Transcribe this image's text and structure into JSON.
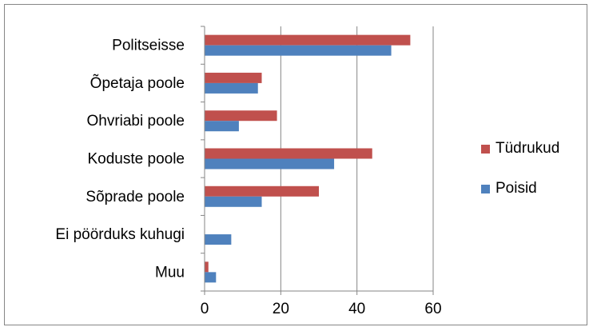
{
  "chart_data": {
    "type": "bar",
    "orientation": "horizontal",
    "categories": [
      "Politseisse",
      "Õpetaja poole",
      "Ohvriabi poole",
      "Koduste poole",
      "Sõprade poole",
      "Ei pöörduks kuhugi",
      "Muu"
    ],
    "series": [
      {
        "name": "Tüdrukud",
        "color": "#c0504d",
        "values": [
          54,
          15,
          19,
          44,
          30,
          0,
          1
        ]
      },
      {
        "name": "Poisid",
        "color": "#4f81bd",
        "values": [
          49,
          14,
          9,
          34,
          15,
          7,
          3
        ]
      }
    ],
    "xlim": [
      0,
      60
    ],
    "xticks": [
      0,
      20,
      40,
      60
    ],
    "grid": "vertical",
    "legend": "right",
    "title": "",
    "xlabel": "",
    "ylabel": ""
  }
}
